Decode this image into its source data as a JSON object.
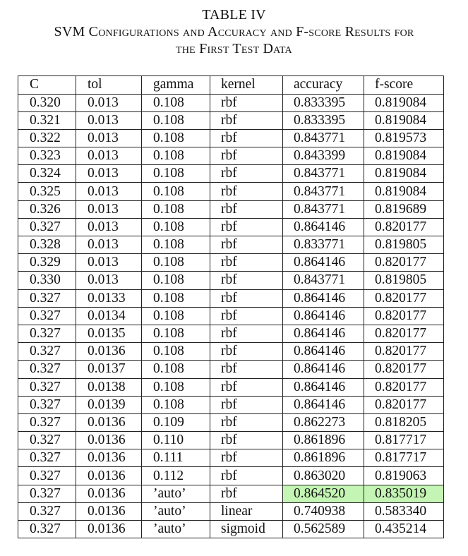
{
  "caption": {
    "label": "TABLE IV",
    "title_line1": "SVM Configurations and Accuracy and F-score Results for",
    "title_line2": "the First Test Data"
  },
  "table": {
    "headers": [
      "C",
      "tol",
      "gamma",
      "kernel",
      "accuracy",
      "f-score"
    ],
    "rows": [
      [
        "0.320",
        "0.013",
        "0.108",
        "rbf",
        "0.833395",
        "0.819084"
      ],
      [
        "0.321",
        "0.013",
        "0.108",
        "rbf",
        "0.833395",
        "0.819084"
      ],
      [
        "0.322",
        "0.013",
        "0.108",
        "rbf",
        "0.843771",
        "0.819573"
      ],
      [
        "0.323",
        "0.013",
        "0.108",
        "rbf",
        "0.843399",
        "0.819084"
      ],
      [
        "0.324",
        "0.013",
        "0.108",
        "rbf",
        "0.843771",
        "0.819084"
      ],
      [
        "0.325",
        "0.013",
        "0.108",
        "rbf",
        "0.843771",
        "0.819084"
      ],
      [
        "0.326",
        "0.013",
        "0.108",
        "rbf",
        "0.843771",
        "0.819689"
      ],
      [
        "0.327",
        "0.013",
        "0.108",
        "rbf",
        "0.864146",
        "0.820177"
      ],
      [
        "0.328",
        "0.013",
        "0.108",
        "rbf",
        "0.833771",
        "0.819805"
      ],
      [
        "0.329",
        "0.013",
        "0.108",
        "rbf",
        "0.864146",
        "0.820177"
      ],
      [
        "0.330",
        "0.013",
        "0.108",
        "rbf",
        "0.843771",
        "0.819805"
      ],
      [
        "0.327",
        "0.0133",
        "0.108",
        "rbf",
        "0.864146",
        "0.820177"
      ],
      [
        "0.327",
        "0.0134",
        "0.108",
        "rbf",
        "0.864146",
        "0.820177"
      ],
      [
        "0.327",
        "0.0135",
        "0.108",
        "rbf",
        "0.864146",
        "0.820177"
      ],
      [
        "0.327",
        "0.0136",
        "0.108",
        "rbf",
        "0.864146",
        "0.820177"
      ],
      [
        "0.327",
        "0.0137",
        "0.108",
        "rbf",
        "0.864146",
        "0.820177"
      ],
      [
        "0.327",
        "0.0138",
        "0.108",
        "rbf",
        "0.864146",
        "0.820177"
      ],
      [
        "0.327",
        "0.0139",
        "0.108",
        "rbf",
        "0.864146",
        "0.820177"
      ],
      [
        "0.327",
        "0.0136",
        "0.109",
        "rbf",
        "0.862273",
        "0.818205"
      ],
      [
        "0.327",
        "0.0136",
        "0.110",
        "rbf",
        "0.861896",
        "0.817717"
      ],
      [
        "0.327",
        "0.0136",
        "0.111",
        "rbf",
        "0.861896",
        "0.817717"
      ],
      [
        "0.327",
        "0.0136",
        "0.112",
        "rbf",
        "0.863020",
        "0.819063"
      ],
      [
        "0.327",
        "0.0136",
        "’auto’",
        "rbf",
        "0.864520",
        "0.835019"
      ],
      [
        "0.327",
        "0.0136",
        "’auto’",
        "linear",
        "0.740938",
        "0.583340"
      ],
      [
        "0.327",
        "0.0136",
        "’auto’",
        "sigmoid",
        "0.562589",
        "0.435214"
      ]
    ],
    "highlight": {
      "row_index": 22,
      "columns": [
        4,
        5
      ],
      "color": "#c5f5b4"
    }
  }
}
